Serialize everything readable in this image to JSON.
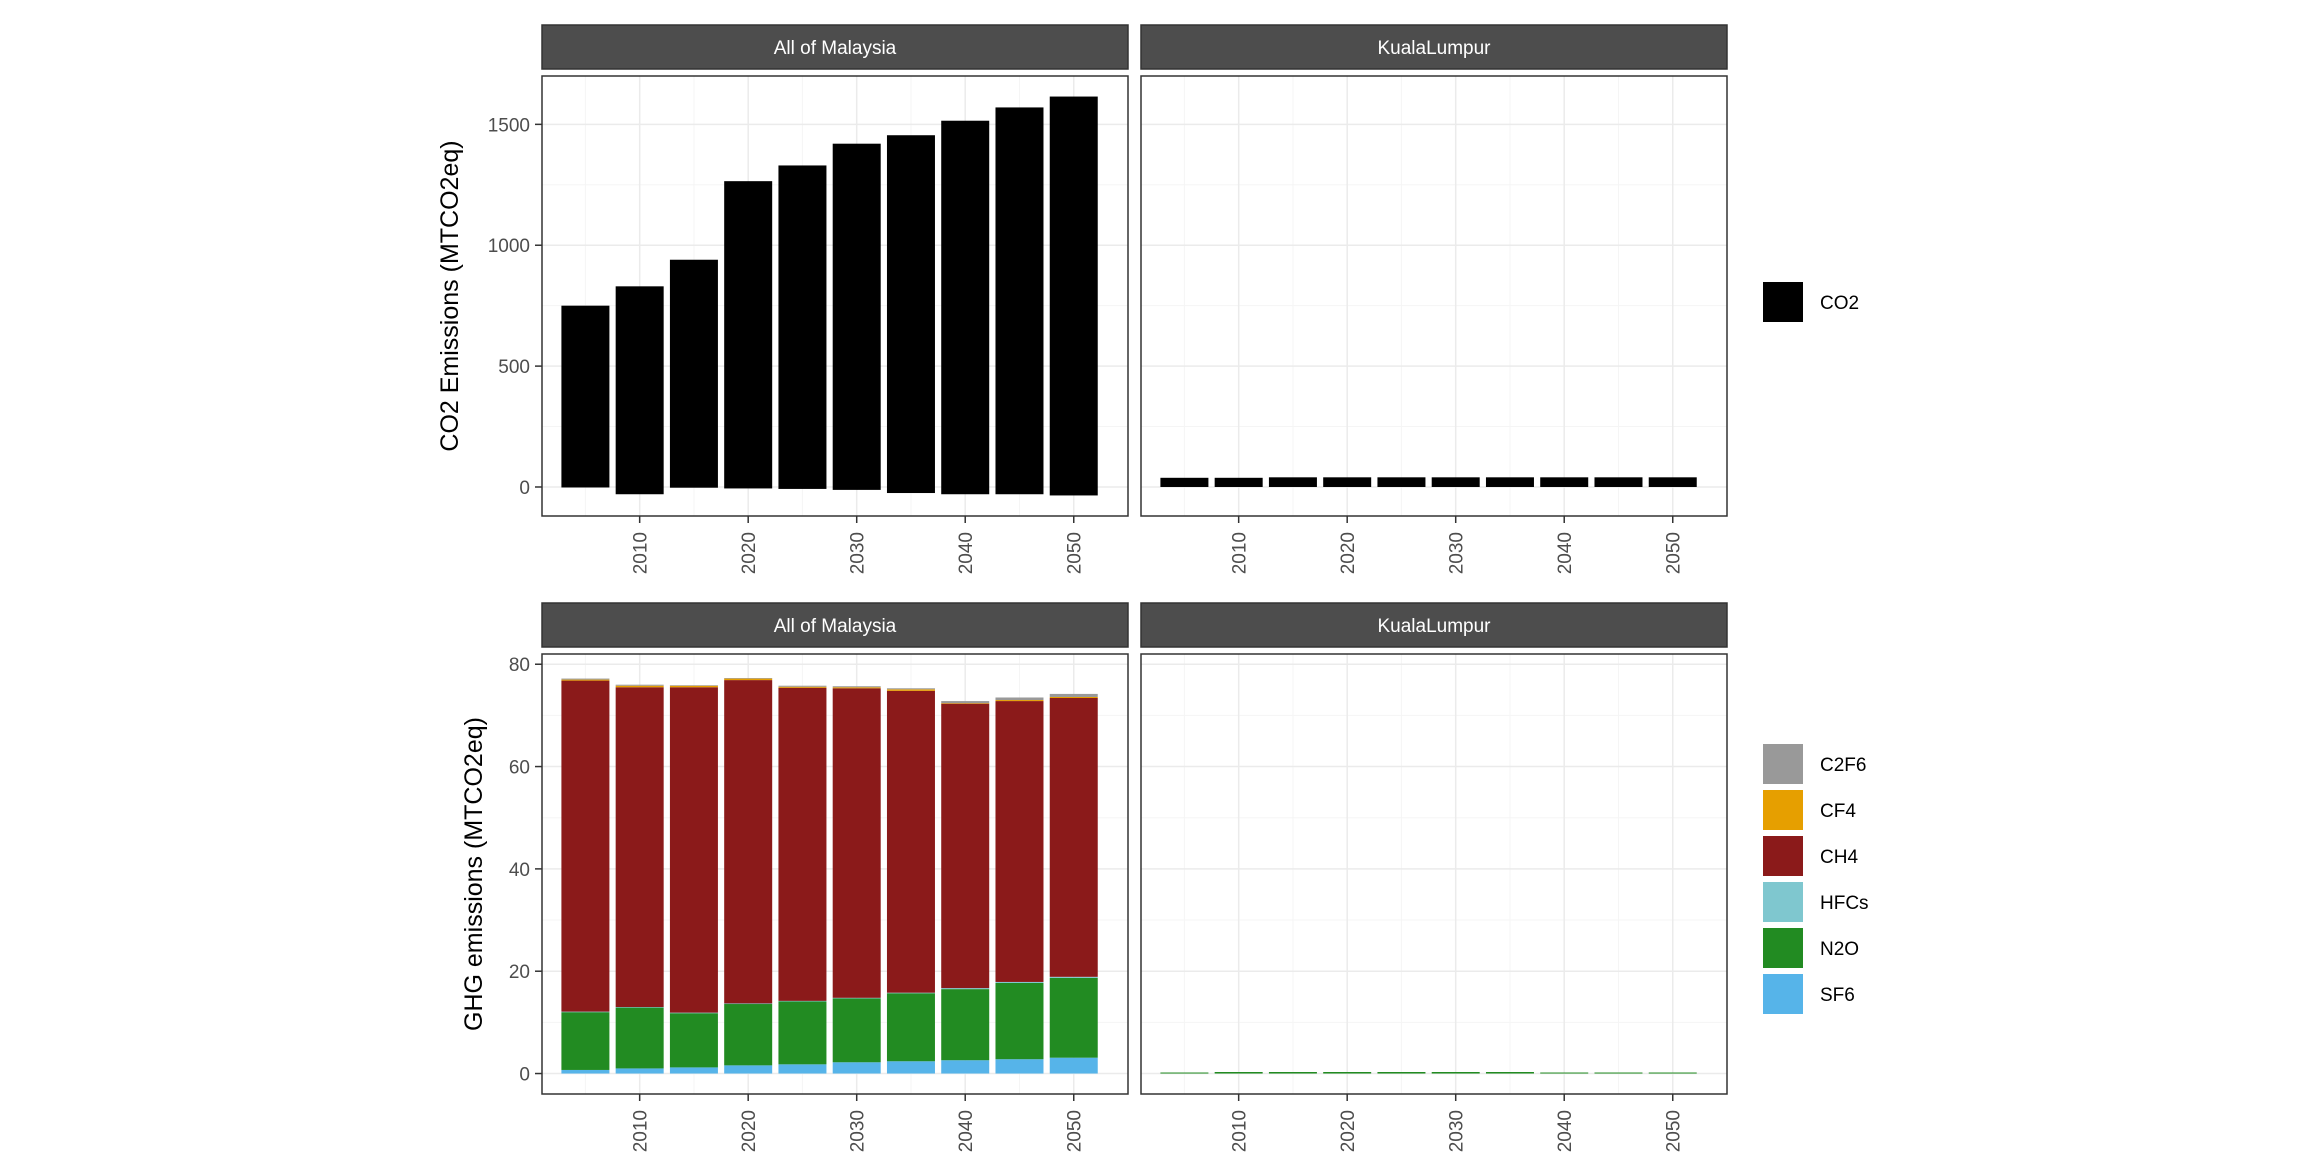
{
  "chart_data": [
    {
      "type": "bar",
      "ylabel": "CO2 Emissions (MTCO2eq)",
      "ylim": [
        -120,
        1700
      ],
      "yticks": [
        0,
        500,
        1000,
        1500
      ],
      "xlim": [
        2001,
        2055
      ],
      "xticks": [
        2010,
        2020,
        2030,
        2040,
        2050
      ],
      "x": [
        2005,
        2010,
        2015,
        2020,
        2025,
        2030,
        2035,
        2040,
        2045,
        2050
      ],
      "panels": [
        {
          "strip": "All of Malaysia",
          "series": [
            {
              "name": "CO2",
              "color": "#000000",
              "values": [
                750,
                830,
                940,
                1265,
                1330,
                1420,
                1455,
                1515,
                1570,
                1615
              ],
              "negative": [
                -2,
                -30,
                -3,
                -6,
                -8,
                -12,
                -25,
                -30,
                -30,
                -35
              ]
            }
          ]
        },
        {
          "strip": "KualaLumpur",
          "series": [
            {
              "name": "CO2",
              "color": "#000000",
              "values": [
                38,
                38,
                40,
                40,
                40,
                40,
                40,
                40,
                40,
                40
              ],
              "negative": [
                0,
                0,
                0,
                0,
                0,
                0,
                0,
                0,
                0,
                0
              ]
            }
          ]
        }
      ],
      "legend": {
        "position": "right",
        "entries": [
          {
            "label": "CO2",
            "color": "#000000"
          }
        ]
      },
      "grid": true
    },
    {
      "type": "bar",
      "stacked": true,
      "ylabel": "GHG emissions (MTCO2eq)",
      "ylim": [
        -4,
        82
      ],
      "yticks": [
        0,
        20,
        40,
        60,
        80
      ],
      "xlim": [
        2001,
        2055
      ],
      "xticks": [
        2010,
        2020,
        2030,
        2040,
        2050
      ],
      "x": [
        2005,
        2010,
        2015,
        2020,
        2025,
        2030,
        2035,
        2040,
        2045,
        2050
      ],
      "panels": [
        {
          "strip": "All of Malaysia",
          "series": [
            {
              "name": "SF6",
              "color": "#56B4E9",
              "values": [
                0.7,
                1.0,
                1.2,
                1.6,
                1.8,
                2.2,
                2.4,
                2.6,
                2.8,
                3.1
              ]
            },
            {
              "name": "N2O",
              "color": "#228B22",
              "values": [
                11.3,
                11.9,
                10.6,
                12.0,
                12.3,
                12.5,
                13.3,
                13.9,
                14.9,
                15.6
              ]
            },
            {
              "name": "HFCs",
              "color": "#7FC7CF",
              "values": [
                0.1,
                0.1,
                0.1,
                0.1,
                0.1,
                0.1,
                0.1,
                0.2,
                0.2,
                0.2
              ]
            },
            {
              "name": "CH4",
              "color": "#8B1A1A",
              "values": [
                64.7,
                62.5,
                63.6,
                63.2,
                61.2,
                60.5,
                59.0,
                55.6,
                54.9,
                54.5
              ]
            },
            {
              "name": "CF4",
              "color": "#E69F00",
              "values": [
                0.2,
                0.3,
                0.3,
                0.3,
                0.2,
                0.2,
                0.3,
                0.1,
                0.2,
                0.2
              ]
            },
            {
              "name": "C2F6",
              "color": "#999999",
              "values": [
                0.2,
                0.2,
                0.1,
                0.1,
                0.2,
                0.2,
                0.2,
                0.4,
                0.5,
                0.6
              ]
            }
          ]
        },
        {
          "strip": "KualaLumpur",
          "series": [
            {
              "name": "SF6",
              "color": "#56B4E9",
              "values": [
                0,
                0,
                0,
                0,
                0,
                0,
                0,
                0,
                0,
                0
              ]
            },
            {
              "name": "N2O",
              "color": "#228B22",
              "values": [
                0.2,
                0.3,
                0.3,
                0.3,
                0.3,
                0.3,
                0.3,
                0.2,
                0.2,
                0.2
              ]
            },
            {
              "name": "HFCs",
              "color": "#7FC7CF",
              "values": [
                0,
                0,
                0,
                0,
                0,
                0,
                0,
                0,
                0,
                0
              ]
            },
            {
              "name": "CH4",
              "color": "#8B1A1A",
              "values": [
                0,
                0,
                0,
                0,
                0,
                0,
                0,
                0,
                0,
                0
              ]
            },
            {
              "name": "CF4",
              "color": "#E69F00",
              "values": [
                0,
                0,
                0,
                0,
                0,
                0,
                0,
                0,
                0,
                0
              ]
            },
            {
              "name": "C2F6",
              "color": "#999999",
              "values": [
                0,
                0,
                0,
                0,
                0,
                0,
                0,
                0,
                0,
                0
              ]
            }
          ]
        }
      ],
      "legend": {
        "position": "right",
        "entries": [
          {
            "label": "C2F6",
            "color": "#999999"
          },
          {
            "label": "CF4",
            "color": "#E69F00"
          },
          {
            "label": "CH4",
            "color": "#8B1A1A"
          },
          {
            "label": "HFCs",
            "color": "#7FC7CF"
          },
          {
            "label": "N2O",
            "color": "#228B22"
          },
          {
            "label": "SF6",
            "color": "#56B4E9"
          }
        ]
      },
      "grid": true
    }
  ],
  "colors": {
    "strip_background": "#4D4D4D",
    "strip_text": "#FFFFFF",
    "grid_major": "#EBEBEB",
    "grid_minor": "#F5F5F5",
    "panel_border": "#333333"
  }
}
